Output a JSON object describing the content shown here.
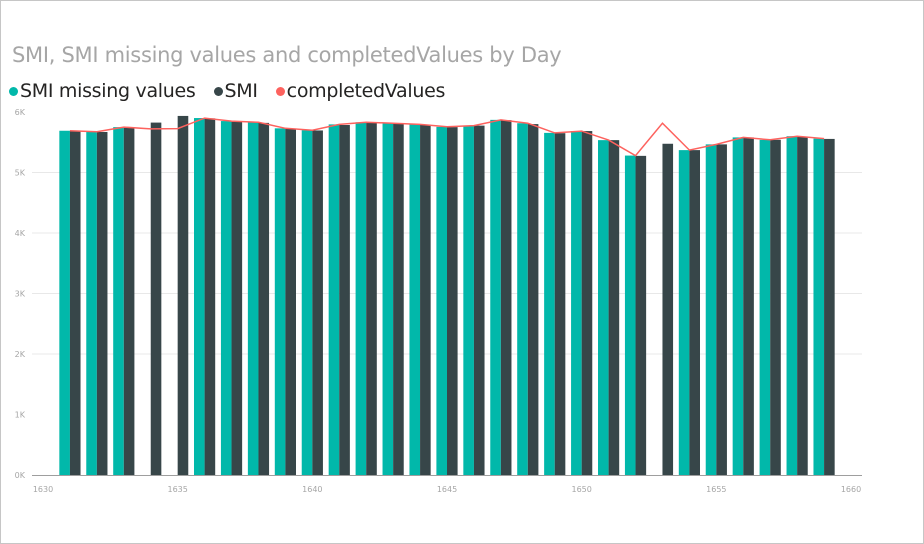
{
  "chart_data": {
    "type": "bar",
    "title": "SMI, SMI missing values and completedValues by Day",
    "xlabel": "",
    "ylabel": "",
    "ylim": [
      0,
      6000
    ],
    "yticks": [
      "0K",
      "1K",
      "2K",
      "3K",
      "4K",
      "5K",
      "6K"
    ],
    "xticks": [
      "1630",
      "1635",
      "1640",
      "1645",
      "1650",
      "1655",
      "1660"
    ],
    "xrange": [
      1630,
      1660
    ],
    "grid": true,
    "legend_position": "top-left",
    "colors": {
      "SMI missing values": "#01B8AA",
      "SMI": "#374649",
      "completedValues": "#FD625E"
    },
    "categories": [
      1631,
      1632,
      1633,
      1634,
      1635,
      1636,
      1637,
      1638,
      1639,
      1640,
      1641,
      1642,
      1643,
      1644,
      1645,
      1646,
      1647,
      1648,
      1649,
      1650,
      1651,
      1652,
      1653,
      1654,
      1655,
      1656,
      1657,
      1658,
      1659
    ],
    "series": [
      {
        "name": "SMI missing values",
        "type": "bar",
        "values": [
          5690,
          5675,
          5750,
          null,
          null,
          5900,
          5850,
          5830,
          5730,
          5700,
          5795,
          5830,
          5815,
          5795,
          5755,
          5775,
          5870,
          5815,
          5655,
          5685,
          5535,
          5280,
          null,
          5370,
          5465,
          5580,
          5540,
          5600,
          5560
        ]
      },
      {
        "name": "SMI",
        "type": "bar",
        "values": [
          5680,
          5670,
          5740,
          5825,
          5935,
          5895,
          5840,
          5820,
          5720,
          5695,
          5785,
          5825,
          5805,
          5790,
          5750,
          5775,
          5865,
          5800,
          5650,
          5685,
          5535,
          5275,
          5475,
          5370,
          5465,
          5580,
          5540,
          5595,
          5555
        ]
      },
      {
        "name": "completedValues",
        "type": "line",
        "values": [
          5690,
          5675,
          5750,
          5720,
          5725,
          5900,
          5850,
          5830,
          5730,
          5700,
          5795,
          5830,
          5815,
          5795,
          5755,
          5775,
          5870,
          5815,
          5655,
          5685,
          5535,
          5280,
          5815,
          5370,
          5465,
          5580,
          5540,
          5600,
          5560
        ]
      }
    ]
  },
  "header": {
    "title": "SMI, SMI missing values and completedValues by Day"
  },
  "legend": {
    "items": [
      {
        "label": "SMI missing values",
        "color": "#01B8AA"
      },
      {
        "label": "SMI",
        "color": "#374649"
      },
      {
        "label": "completedValues",
        "color": "#FD625E"
      }
    ]
  }
}
